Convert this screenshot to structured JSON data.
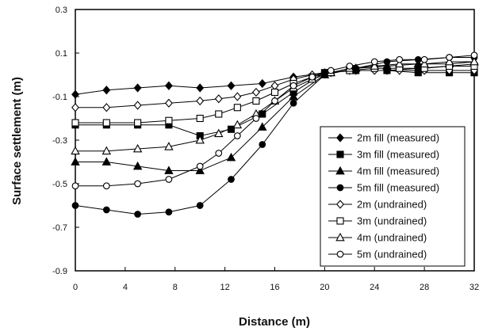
{
  "chart_data": {
    "type": "line",
    "title": "",
    "xlabel": "Distance (m)",
    "ylabel": "Surface settlement (m)",
    "xlim": [
      0,
      32
    ],
    "ylim": [
      -0.9,
      0.3
    ],
    "xticks": [
      "0",
      "4",
      "8",
      "12",
      "16",
      "20",
      "24",
      "28",
      "32"
    ],
    "yticks": [
      "0.3",
      "0.1",
      "-0.1",
      "-0.3",
      "-0.5",
      "-0.7",
      "-0.9"
    ],
    "grid": false,
    "legend_position": "bottom-right",
    "series": [
      {
        "name": "2m fill (measured)",
        "marker": "diamond-filled",
        "color": "#000000",
        "x": [
          0,
          2.5,
          5,
          7.5,
          10,
          12.5,
          15,
          17.5,
          20,
          22.5,
          25,
          27.5,
          30,
          32
        ],
        "y": [
          -0.09,
          -0.07,
          -0.06,
          -0.05,
          -0.06,
          -0.05,
          -0.04,
          -0.01,
          0.01,
          0.02,
          0.02,
          0.03,
          0.04,
          0.05
        ]
      },
      {
        "name": "3m fill (measured)",
        "marker": "square-filled",
        "color": "#000000",
        "x": [
          0,
          2.5,
          5,
          7.5,
          10,
          12.5,
          15,
          17.5,
          20,
          22.5,
          25,
          27.5,
          30,
          32
        ],
        "y": [
          -0.23,
          -0.23,
          -0.23,
          -0.23,
          -0.28,
          -0.25,
          -0.18,
          -0.08,
          0.01,
          0.02,
          0.02,
          0.01,
          0.01,
          0.01
        ]
      },
      {
        "name": "4m fill (measured)",
        "marker": "triangle-filled",
        "color": "#000000",
        "x": [
          0,
          2.5,
          5,
          7.5,
          10,
          12.5,
          15,
          17.5,
          20,
          22.5,
          25,
          27.5,
          30,
          32
        ],
        "y": [
          -0.4,
          -0.4,
          -0.42,
          -0.44,
          -0.44,
          -0.38,
          -0.24,
          -0.1,
          0.0,
          0.03,
          0.04,
          0.05,
          0.05,
          0.06
        ]
      },
      {
        "name": "5m fill (measured)",
        "marker": "circle-filled",
        "color": "#000000",
        "x": [
          0,
          2.5,
          5,
          7.5,
          10,
          12.5,
          15,
          17.5,
          20,
          22.5,
          25,
          27.5,
          30,
          32
        ],
        "y": [
          -0.6,
          -0.62,
          -0.64,
          -0.63,
          -0.6,
          -0.48,
          -0.32,
          -0.13,
          0.0,
          0.03,
          0.06,
          0.07,
          0.08,
          0.08
        ]
      },
      {
        "name": "2m (undrained)",
        "marker": "diamond-open",
        "color": "#000000",
        "x": [
          0,
          2.5,
          5,
          7.5,
          10,
          11.5,
          13,
          14.5,
          16,
          17.5,
          19,
          20.5,
          22,
          24,
          26,
          28,
          30,
          32
        ],
        "y": [
          -0.15,
          -0.15,
          -0.14,
          -0.13,
          -0.12,
          -0.11,
          -0.1,
          -0.08,
          -0.05,
          -0.02,
          0.0,
          0.01,
          0.02,
          0.02,
          0.02,
          0.02,
          0.02,
          0.02
        ]
      },
      {
        "name": "3m (undrained)",
        "marker": "square-open",
        "color": "#000000",
        "x": [
          0,
          2.5,
          5,
          7.5,
          10,
          11.5,
          13,
          14.5,
          16,
          17.5,
          19,
          20.5,
          22,
          24,
          26,
          28,
          30,
          32
        ],
        "y": [
          -0.22,
          -0.22,
          -0.22,
          -0.21,
          -0.2,
          -0.18,
          -0.15,
          -0.12,
          -0.08,
          -0.04,
          -0.01,
          0.01,
          0.02,
          0.03,
          0.03,
          0.03,
          0.04,
          0.04
        ]
      },
      {
        "name": "4m (undrained)",
        "marker": "triangle-open",
        "color": "#000000",
        "x": [
          0,
          2.5,
          5,
          7.5,
          10,
          11.5,
          13,
          14.5,
          16,
          17.5,
          19,
          20.5,
          22,
          24,
          26,
          28,
          30,
          32
        ],
        "y": [
          -0.35,
          -0.35,
          -0.34,
          -0.33,
          -0.3,
          -0.27,
          -0.23,
          -0.18,
          -0.12,
          -0.06,
          -0.02,
          0.01,
          0.03,
          0.04,
          0.05,
          0.05,
          0.06,
          0.06
        ]
      },
      {
        "name": "5m (undrained)",
        "marker": "circle-open",
        "color": "#000000",
        "x": [
          0,
          2.5,
          5,
          7.5,
          10,
          11.5,
          13,
          14.5,
          16,
          17.5,
          19,
          20.5,
          22,
          24,
          26,
          28,
          30,
          32
        ],
        "y": [
          -0.51,
          -0.51,
          -0.5,
          -0.48,
          -0.42,
          -0.36,
          -0.28,
          -0.2,
          -0.12,
          -0.05,
          -0.01,
          0.02,
          0.04,
          0.06,
          0.07,
          0.07,
          0.08,
          0.09
        ]
      }
    ]
  }
}
